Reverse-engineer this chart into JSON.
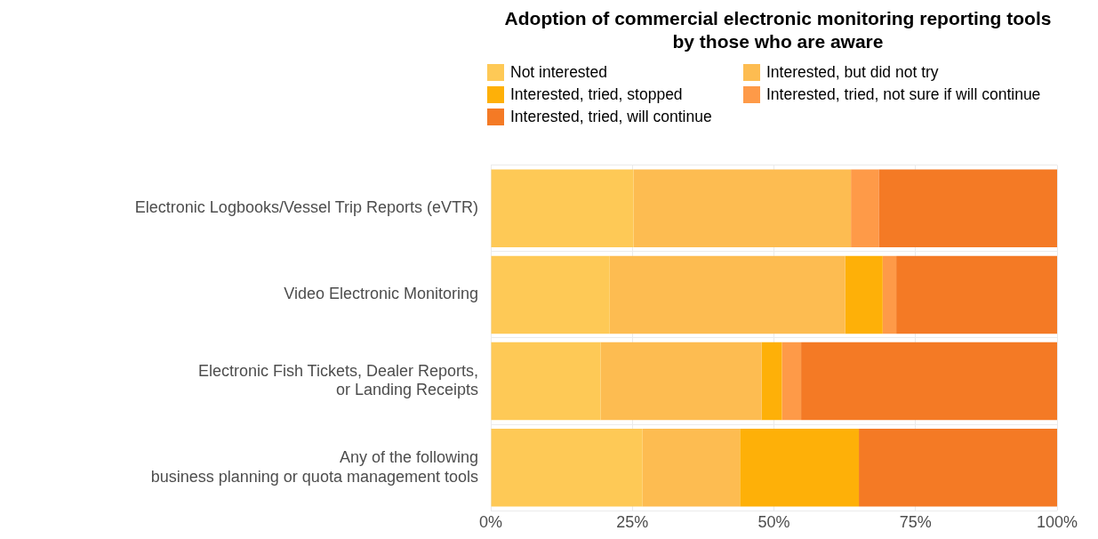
{
  "chart_data": {
    "type": "bar",
    "orientation": "horizontal",
    "stacked": true,
    "title": "Adoption of commercial electronic monitoring reporting tools\nby those who are aware",
    "categories": [
      "Electronic Logbooks/Vessel Trip Reports (eVTR)",
      "Video Electronic Monitoring",
      "Electronic Fish Tickets, Dealer Reports,\nor Landing Receipts",
      "Any of the following\nbusiness planning or quota management tools"
    ],
    "series": [
      {
        "name": "Not interested",
        "color": "#fec956",
        "values": [
          25.2,
          21.0,
          19.4,
          26.8
        ]
      },
      {
        "name": "Interested, but did not try",
        "color": "#fdbc51",
        "values": [
          38.4,
          41.6,
          28.4,
          17.2
        ]
      },
      {
        "name": "Interested, tried, stopped",
        "color": "#feb008",
        "values": [
          0,
          6.6,
          3.6,
          21.0
        ]
      },
      {
        "name": "Interested, tried, not sure if will continue",
        "color": "#fe9a48",
        "values": [
          4.9,
          2.4,
          3.4,
          0
        ]
      },
      {
        "name": "Interested, tried, will continue",
        "color": "#f47a25",
        "values": [
          31.5,
          28.4,
          45.2,
          35.0
        ]
      }
    ],
    "xlim": [
      0,
      100
    ],
    "xticks": [
      {
        "value": 0,
        "label": "0%"
      },
      {
        "value": 25,
        "label": "25%"
      },
      {
        "value": 50,
        "label": "50%"
      },
      {
        "value": 75,
        "label": "75%"
      },
      {
        "value": 100,
        "label": "100%"
      }
    ],
    "grid": true,
    "legend": "top"
  }
}
